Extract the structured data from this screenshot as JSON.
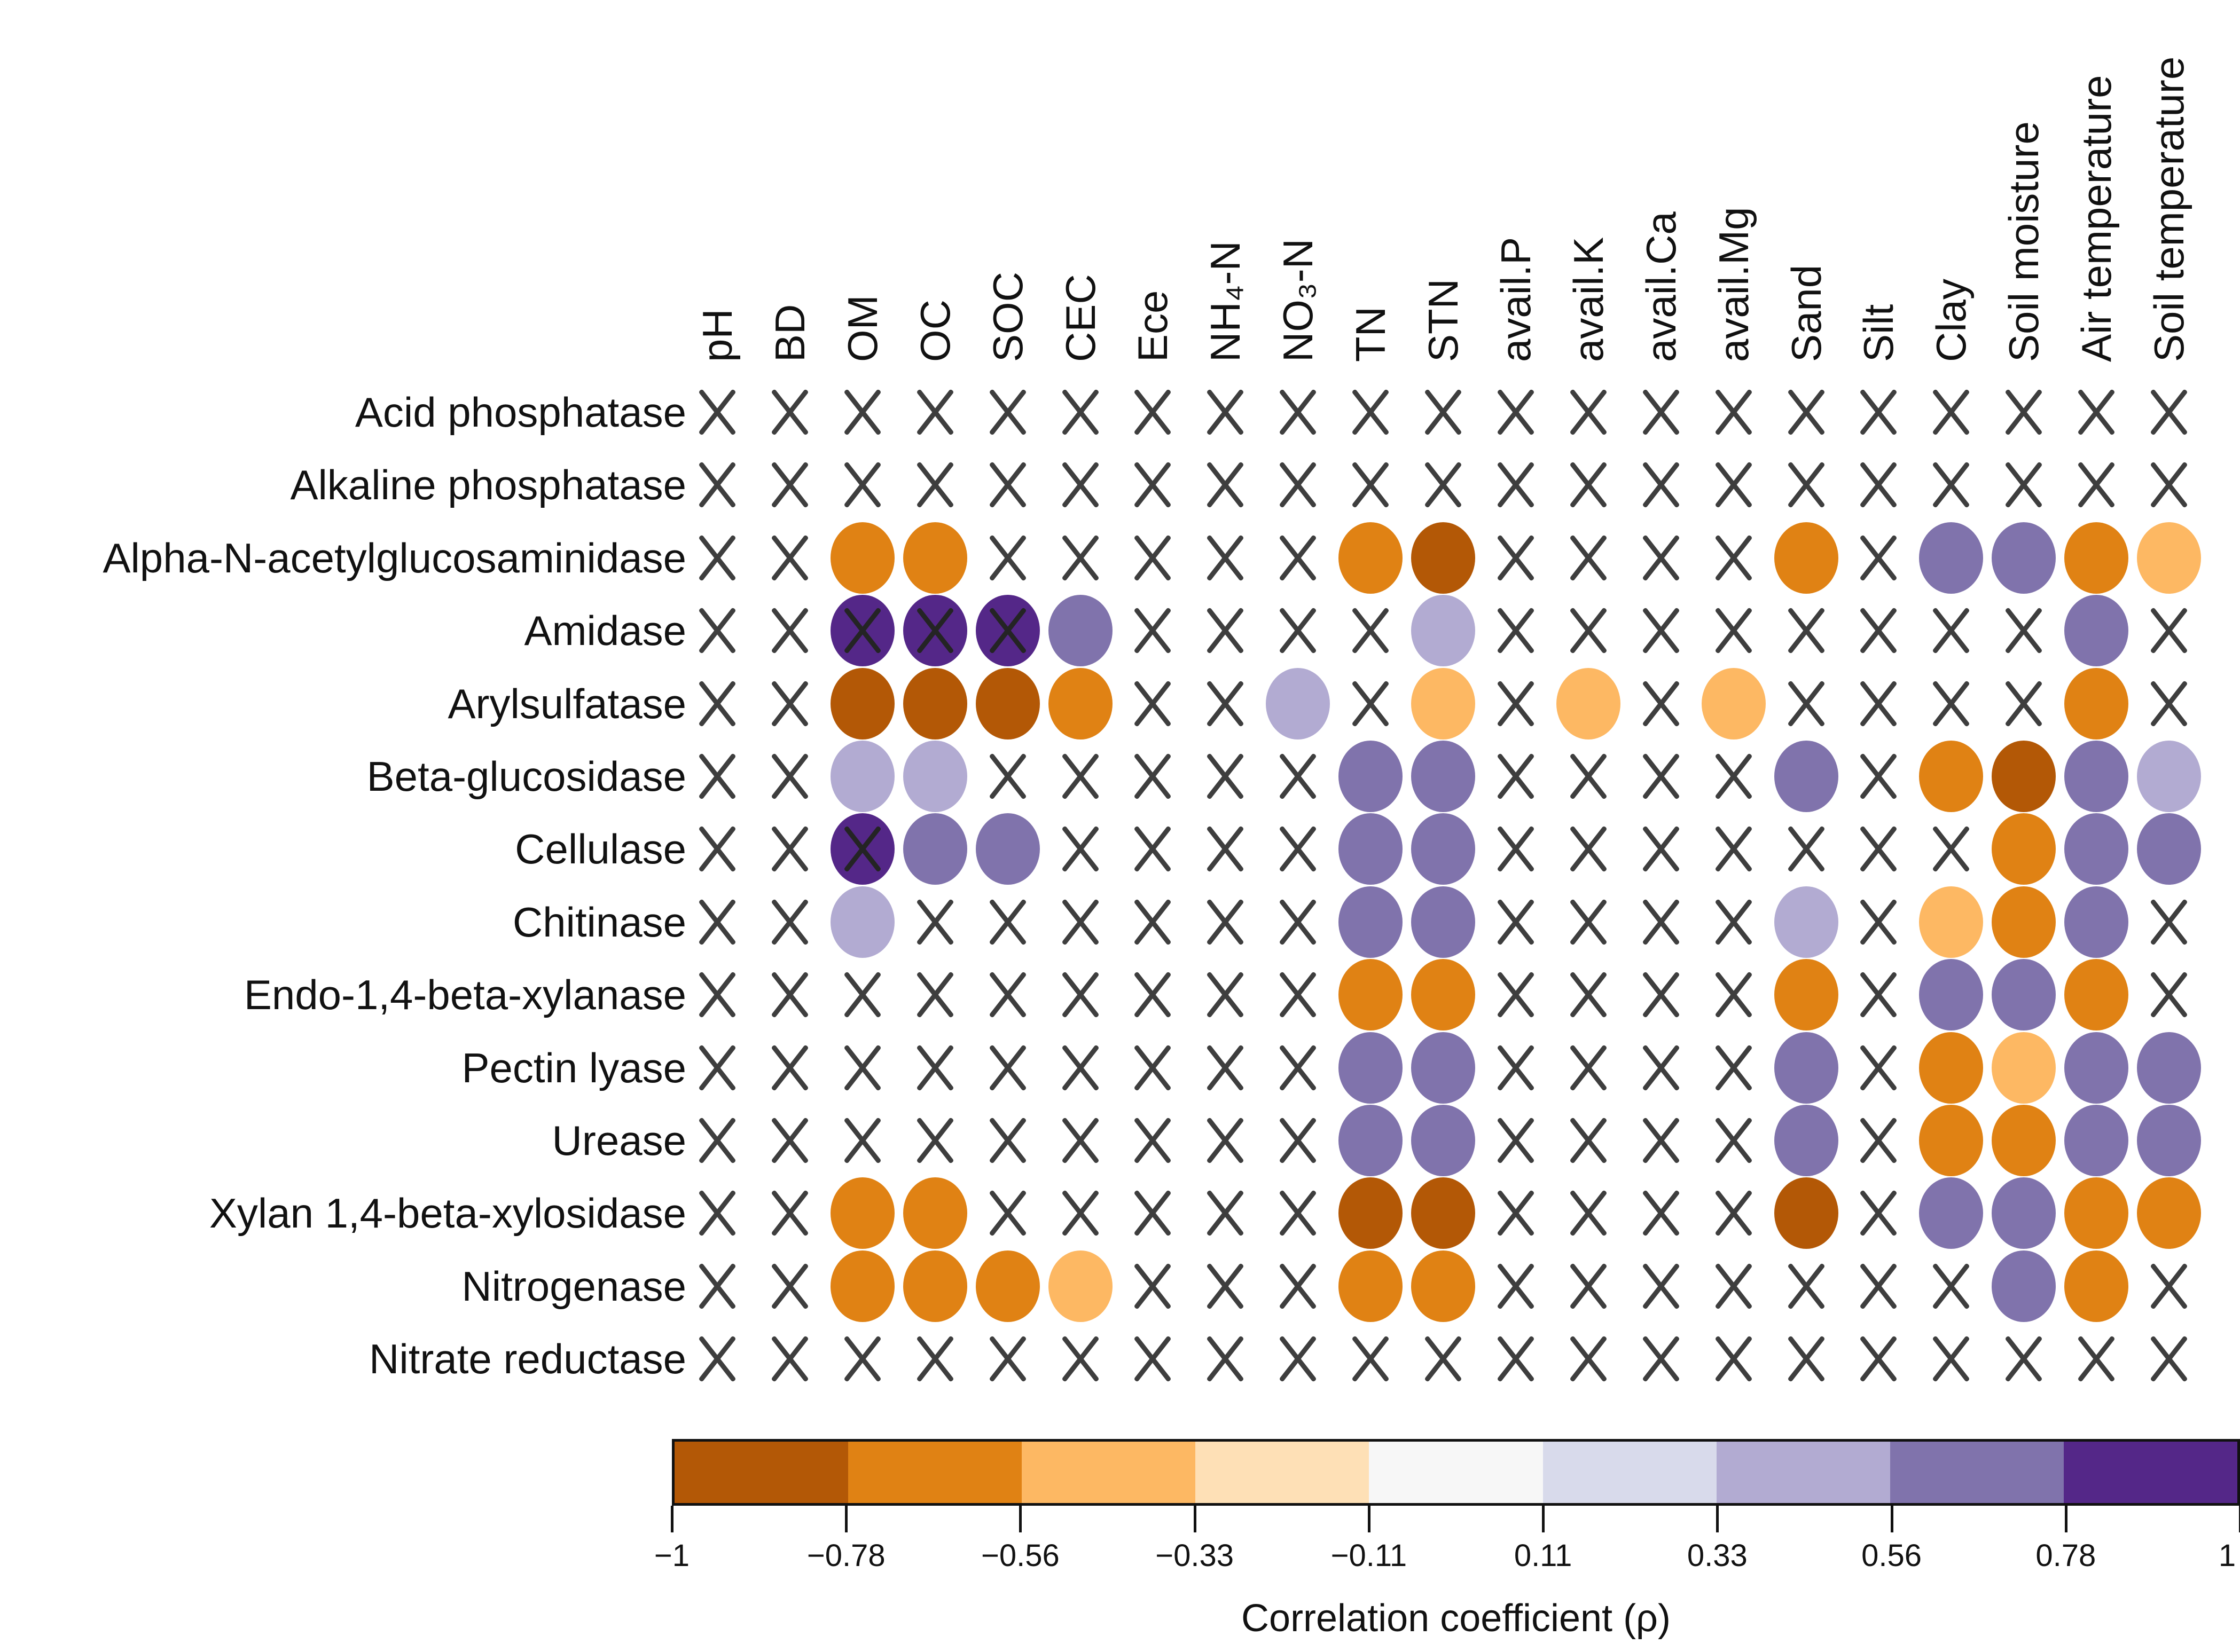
{
  "chart_data": {
    "type": "heatmap",
    "subtype": "correlation-dot-matrix",
    "rows": [
      "Acid phosphatase",
      "Alkaline phosphatase",
      "Alpha-N-acetylglucosaminidase",
      "Amidase",
      "Arylsulfatase",
      "Beta-glucosidase",
      "Cellulase",
      "Chitinase",
      "Endo-1,4-beta-xylanase",
      "Pectin lyase",
      "Urease",
      "Xylan 1,4-beta-xylosidase",
      "Nitrogenase",
      "Nitrate reductase"
    ],
    "columns": [
      "pH",
      "BD",
      "OM",
      "OC",
      "SOC",
      "CEC",
      "Ece",
      "NH₄-N",
      "NO₃-N",
      "TN",
      "STN",
      "avail.P",
      "avail.K",
      "avail.Ca",
      "avail.Mg",
      "Sand",
      "Silt",
      "Clay",
      "Soil moisture",
      "Air temperature",
      "Soil temperature"
    ],
    "matrix": [
      [
        "x",
        "x",
        "x",
        "x",
        "x",
        "x",
        "x",
        "x",
        "x",
        "x",
        "x",
        "x",
        "x",
        "x",
        "x",
        "x",
        "x",
        "x",
        "x",
        "x",
        "x"
      ],
      [
        "x",
        "x",
        "x",
        "x",
        "x",
        "x",
        "x",
        "x",
        "x",
        "x",
        "x",
        "x",
        "x",
        "x",
        "x",
        "x",
        "x",
        "x",
        "x",
        "x",
        "x"
      ],
      [
        "x",
        "x",
        "-0.67",
        "-0.67",
        "x",
        "x",
        "x",
        "x",
        "x",
        "-0.67",
        "-0.89",
        "x",
        "x",
        "x",
        "x",
        "-0.67",
        "x",
        "0.67",
        "0.67",
        "-0.67",
        "-0.45"
      ],
      [
        "x",
        "x",
        "0.89x",
        "0.89x",
        "0.89x",
        "0.67",
        "x",
        "x",
        "x",
        "x",
        "0.45",
        "x",
        "x",
        "x",
        "x",
        "x",
        "x",
        "x",
        "x",
        "0.67",
        "x"
      ],
      [
        "x",
        "x",
        "-0.89",
        "-0.89",
        "-0.89",
        "-0.67",
        "x",
        "x",
        "0.45",
        "x",
        "-0.45",
        "x",
        "-0.45",
        "x",
        "-0.45",
        "x",
        "x",
        "x",
        "x",
        "-0.67",
        "x"
      ],
      [
        "x",
        "x",
        "0.45",
        "0.45",
        "x",
        "x",
        "x",
        "x",
        "x",
        "0.67",
        "0.67",
        "x",
        "x",
        "x",
        "x",
        "0.67",
        "x",
        "-0.67",
        "-0.89",
        "0.67",
        "0.45"
      ],
      [
        "x",
        "x",
        "0.89x",
        "0.67",
        "0.67",
        "x",
        "x",
        "x",
        "x",
        "0.67",
        "0.67",
        "x",
        "x",
        "x",
        "x",
        "x",
        "x",
        "x",
        "-0.67",
        "0.67",
        "0.67"
      ],
      [
        "x",
        "x",
        "0.45",
        "x",
        "x",
        "x",
        "x",
        "x",
        "x",
        "0.67",
        "0.67",
        "x",
        "x",
        "x",
        "x",
        "0.45",
        "x",
        "-0.45",
        "-0.67",
        "0.67",
        "x"
      ],
      [
        "x",
        "x",
        "x",
        "x",
        "x",
        "x",
        "x",
        "x",
        "x",
        "-0.67",
        "-0.67",
        "x",
        "x",
        "x",
        "x",
        "-0.67",
        "x",
        "0.67",
        "0.67",
        "-0.67",
        "x"
      ],
      [
        "x",
        "x",
        "x",
        "x",
        "x",
        "x",
        "x",
        "x",
        "x",
        "0.67",
        "0.67",
        "x",
        "x",
        "x",
        "x",
        "0.67",
        "x",
        "-0.67",
        "-0.45",
        "0.67",
        "0.67"
      ],
      [
        "x",
        "x",
        "x",
        "x",
        "x",
        "x",
        "x",
        "x",
        "x",
        "0.67",
        "0.67",
        "x",
        "x",
        "x",
        "x",
        "0.67",
        "x",
        "-0.67",
        "-0.67",
        "0.67",
        "0.67"
      ],
      [
        "x",
        "x",
        "-0.67",
        "-0.67",
        "x",
        "x",
        "x",
        "x",
        "x",
        "-0.89",
        "-0.89",
        "x",
        "x",
        "x",
        "x",
        "-0.89",
        "x",
        "0.67",
        "0.67",
        "-0.67",
        "-0.67"
      ],
      [
        "x",
        "x",
        "-0.67",
        "-0.67",
        "-0.67",
        "-0.45",
        "x",
        "x",
        "x",
        "-0.67",
        "-0.67",
        "x",
        "x",
        "x",
        "x",
        "x",
        "x",
        "x",
        "0.67",
        "-0.67",
        "x"
      ],
      [
        "x",
        "x",
        "x",
        "x",
        "x",
        "x",
        "x",
        "x",
        "x",
        "x",
        "x",
        "x",
        "x",
        "x",
        "x",
        "x",
        "x",
        "x",
        "x",
        "x",
        "x"
      ]
    ],
    "colorbar": {
      "label": "Correlation coefficient (ρ)",
      "tick_labels": [
        "−1",
        "−0.78",
        "−0.56",
        "−0.33",
        "−0.11",
        "0.11",
        "0.33",
        "0.56",
        "0.78",
        "1"
      ],
      "bin_thresholds": [
        -0.78,
        -0.56,
        -0.33,
        -0.11,
        0.11,
        0.33,
        0.56,
        0.78
      ],
      "colors": [
        "#b35806",
        "#e08214",
        "#fdb863",
        "#fee0b6",
        "#f7f7f7",
        "#d8daeb",
        "#b2abd2",
        "#8073ac",
        "#542788"
      ],
      "domain": [
        -1,
        1
      ]
    }
  }
}
